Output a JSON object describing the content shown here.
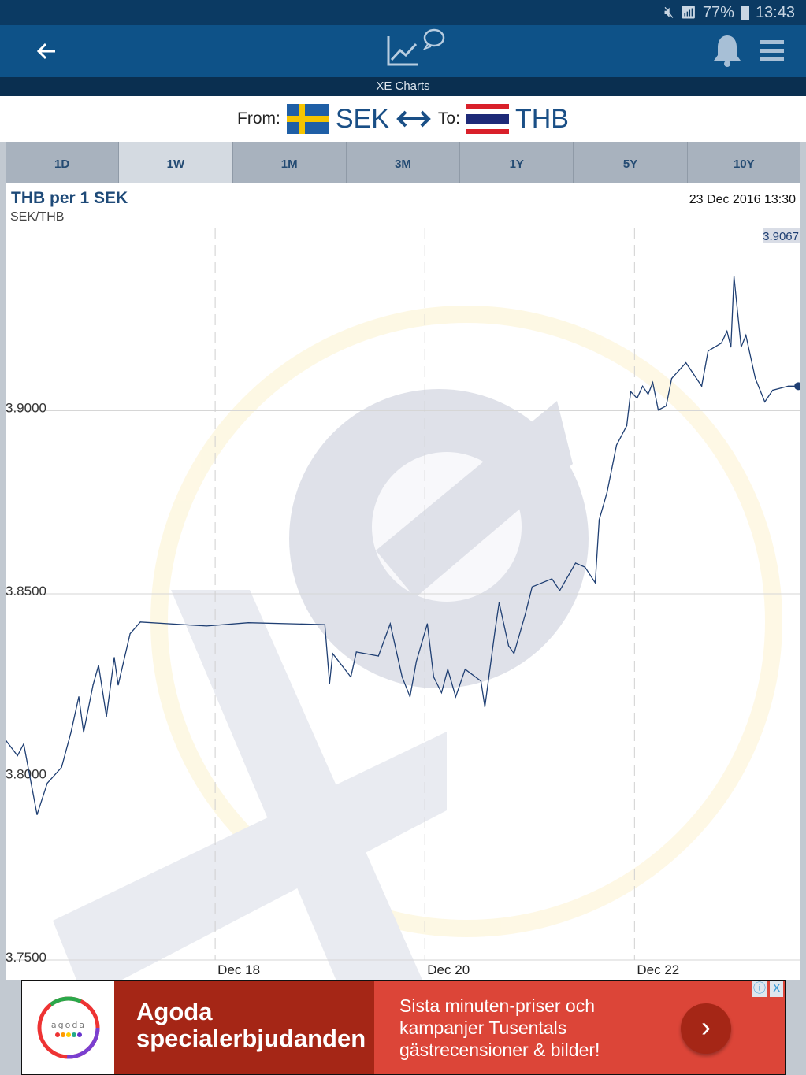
{
  "status_bar": {
    "battery": "77%",
    "time": "13:43"
  },
  "header": {
    "title": "XE Charts"
  },
  "converter": {
    "from_label": "From:",
    "from_currency": "SEK",
    "to_label": "To:",
    "to_currency": "THB"
  },
  "tabs": [
    {
      "label": "1D"
    },
    {
      "label": "1W",
      "selected": true
    },
    {
      "label": "1M"
    },
    {
      "label": "3M"
    },
    {
      "label": "1Y"
    },
    {
      "label": "5Y"
    },
    {
      "label": "10Y"
    }
  ],
  "chart_header": {
    "title": "THB per 1 SEK",
    "pair": "SEK/THB",
    "timestamp": "23 Dec 2016 13:30"
  },
  "chart_data": {
    "type": "line",
    "ylim": [
      3.75,
      3.95
    ],
    "y_ticks": [
      "3.7500",
      "3.8000",
      "3.8500",
      "3.9000"
    ],
    "x_ticks": [
      {
        "label": "Dec 18",
        "date": "2016-12-18T00:00"
      },
      {
        "label": "Dec 20",
        "date": "2016-12-20T00:00"
      },
      {
        "label": "Dec 22",
        "date": "2016-12-22T00:00"
      }
    ],
    "xlim": [
      "2016-12-16T00:00",
      "2016-12-23T14:00"
    ],
    "last_value_label": "3.9067",
    "line_color": "#1f3f73",
    "points": [
      [
        "2016-12-16T00:00",
        3.8101
      ],
      [
        "2016-12-16T02:45",
        3.8058
      ],
      [
        "2016-12-16T04:10",
        3.809
      ],
      [
        "2016-12-16T07:13",
        3.7897
      ],
      [
        "2016-12-16T09:34",
        3.7983
      ],
      [
        "2016-12-16T12:49",
        3.8026
      ],
      [
        "2016-12-16T14:59",
        3.8122
      ],
      [
        "2016-12-16T16:47",
        3.8219
      ],
      [
        "2016-12-16T17:52",
        3.8122
      ],
      [
        "2016-12-16T20:02",
        3.8251
      ],
      [
        "2016-12-16T21:18",
        3.8305
      ],
      [
        "2016-12-16T23:06",
        3.8165
      ],
      [
        "2016-12-17T00:54",
        3.8326
      ],
      [
        "2016-12-17T01:48",
        3.8251
      ],
      [
        "2016-12-17T04:31",
        3.8391
      ],
      [
        "2016-12-17T06:52",
        3.8423
      ],
      [
        "2016-12-17T22:01",
        3.8412
      ],
      [
        "2016-12-18T07:36",
        3.8421
      ],
      [
        "2016-12-19T01:06",
        3.8416
      ],
      [
        "2016-12-19T02:11",
        3.8255
      ],
      [
        "2016-12-19T02:54",
        3.8337
      ],
      [
        "2016-12-19T07:04",
        3.8273
      ],
      [
        "2016-12-19T08:19",
        3.8341
      ],
      [
        "2016-12-19T13:22",
        3.833
      ],
      [
        "2016-12-19T16:05",
        3.8418
      ],
      [
        "2016-12-19T18:48",
        3.8273
      ],
      [
        "2016-12-19T20:36",
        3.8219
      ],
      [
        "2016-12-19T22:03",
        3.8315
      ],
      [
        "2016-12-20T00:34",
        3.8418
      ],
      [
        "2016-12-20T02:01",
        3.8273
      ],
      [
        "2016-12-20T03:49",
        3.823
      ],
      [
        "2016-12-20T05:15",
        3.8294
      ],
      [
        "2016-12-20T07:04",
        3.8219
      ],
      [
        "2016-12-20T09:14",
        3.8294
      ],
      [
        "2016-12-20T12:50",
        3.8262
      ],
      [
        "2016-12-20T13:44",
        3.8191
      ],
      [
        "2016-12-20T16:05",
        3.8401
      ],
      [
        "2016-12-20T17:00",
        3.8476
      ],
      [
        "2016-12-20T19:10",
        3.8358
      ],
      [
        "2016-12-20T20:25",
        3.8337
      ],
      [
        "2016-12-20T23:00",
        3.8444
      ],
      [
        "2016-12-21T00:34",
        3.8519
      ],
      [
        "2016-12-21T05:05",
        3.8541
      ],
      [
        "2016-12-21T06:54",
        3.8509
      ],
      [
        "2016-12-21T10:30",
        3.8584
      ],
      [
        "2016-12-21T12:40",
        3.8573
      ],
      [
        "2016-12-21T15:01",
        3.853
      ],
      [
        "2016-12-21T15:55",
        3.8702
      ],
      [
        "2016-12-21T17:43",
        3.8777
      ],
      [
        "2016-12-21T19:53",
        3.8906
      ],
      [
        "2016-12-21T22:14",
        3.8959
      ],
      [
        "2016-12-21T23:08",
        3.9052
      ],
      [
        "2016-12-22T00:35",
        3.9034
      ],
      [
        "2016-12-22T01:51",
        3.9067
      ],
      [
        "2016-12-22T03:07",
        3.9045
      ],
      [
        "2016-12-22T04:11",
        3.9077
      ],
      [
        "2016-12-22T05:27",
        3.9002
      ],
      [
        "2016-12-22T07:15",
        3.9013
      ],
      [
        "2016-12-22T08:31",
        3.9088
      ],
      [
        "2016-12-22T11:46",
        3.9131
      ],
      [
        "2016-12-22T15:23",
        3.9067
      ],
      [
        "2016-12-22T16:50",
        3.9163
      ],
      [
        "2016-12-22T19:54",
        3.9185
      ],
      [
        "2016-12-22T21:10",
        3.9217
      ],
      [
        "2016-12-22T22:04",
        3.9174
      ],
      [
        "2016-12-22T22:47",
        3.9367
      ],
      [
        "2016-12-22T23:30",
        3.9281
      ],
      [
        "2016-12-23T00:25",
        3.9174
      ],
      [
        "2016-12-23T01:30",
        3.9206
      ],
      [
        "2016-12-23T03:40",
        3.9088
      ],
      [
        "2016-12-23T05:50",
        3.9024
      ],
      [
        "2016-12-23T07:38",
        3.9056
      ],
      [
        "2016-12-23T11:14",
        3.9067
      ],
      [
        "2016-12-23T13:30",
        3.9067
      ]
    ]
  },
  "ad": {
    "brand_logo": "agoda",
    "headline": "Agoda specialerbjudanden",
    "body": "Sista minuten-priser och kampanjer Tusentals gästrecensioner & bilder!",
    "info_icon": "ⓘ",
    "close_icon": "X",
    "colors": {
      "dark": "#a52616",
      "light": "#dc4538"
    }
  }
}
